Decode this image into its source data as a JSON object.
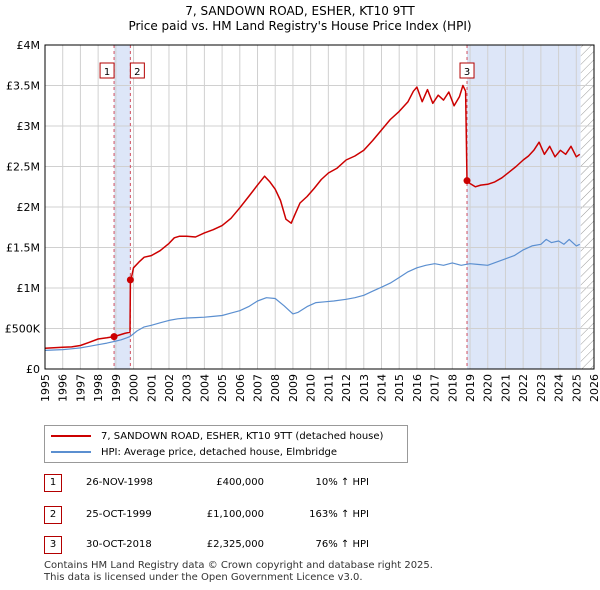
{
  "title_line1": "7, SANDOWN ROAD, ESHER, KT10 9TT",
  "title_line2": "Price paid vs. HM Land Registry's House Price Index (HPI)",
  "colors": {
    "price": "#cc0000",
    "hpi": "#5b8fd0",
    "shade": "#dde6f8",
    "grid": "#d0d0d0",
    "marker_line": "#d05060",
    "badge_border": "#b30000"
  },
  "chart_data": {
    "type": "line",
    "title": "Price paid vs. HM Land Registry's House Price Index (HPI)",
    "xlim": [
      1995,
      2026
    ],
    "ylim": [
      0,
      4000000
    ],
    "y_ticks": [
      {
        "v": 0,
        "label": "£0"
      },
      {
        "v": 500000,
        "label": "£500K"
      },
      {
        "v": 1000000,
        "label": "£1M"
      },
      {
        "v": 1500000,
        "label": "£1.5M"
      },
      {
        "v": 2000000,
        "label": "£2M"
      },
      {
        "v": 2500000,
        "label": "£2.5M"
      },
      {
        "v": 3000000,
        "label": "£3M"
      },
      {
        "v": 3500000,
        "label": "£3.5M"
      },
      {
        "v": 4000000,
        "label": "£4M"
      }
    ],
    "x_ticks": [
      "1995",
      "1996",
      "1997",
      "1998",
      "1999",
      "2000",
      "2001",
      "2002",
      "2003",
      "2004",
      "2005",
      "2006",
      "2007",
      "2008",
      "2009",
      "2010",
      "2011",
      "2012",
      "2013",
      "2014",
      "2015",
      "2016",
      "2017",
      "2018",
      "2019",
      "2020",
      "2021",
      "2022",
      "2023",
      "2024",
      "2025",
      "2026"
    ],
    "shaded_ranges": [
      [
        1998.9,
        1999.82
      ],
      [
        2018.83,
        2025.25
      ]
    ],
    "hatched_range": [
      2025.25,
      2026
    ],
    "series": [
      {
        "name": "7, SANDOWN ROAD, ESHER, KT10 9TT (detached house)",
        "x": [
          1995.0,
          1995.5,
          1996.0,
          1996.5,
          1997.0,
          1997.5,
          1998.0,
          1998.5,
          1998.9,
          1999.2,
          1999.5,
          1999.8,
          1999.82,
          1999.9,
          2000.0,
          2000.3,
          2000.6,
          2001.0,
          2001.5,
          2002.0,
          2002.3,
          2002.6,
          2003.0,
          2003.5,
          2004.0,
          2004.5,
          2005.0,
          2005.5,
          2006.0,
          2006.5,
          2007.0,
          2007.4,
          2007.7,
          2008.0,
          2008.3,
          2008.6,
          2008.9,
          2009.1,
          2009.4,
          2009.8,
          2010.2,
          2010.6,
          2011.0,
          2011.5,
          2012.0,
          2012.5,
          2013.0,
          2013.5,
          2014.0,
          2014.5,
          2015.0,
          2015.5,
          2015.8,
          2016.0,
          2016.3,
          2016.6,
          2016.9,
          2017.2,
          2017.5,
          2017.8,
          2018.1,
          2018.4,
          2018.6,
          2018.75,
          2018.83,
          2019.0,
          2019.3,
          2019.6,
          2020.0,
          2020.4,
          2020.8,
          2021.2,
          2021.6,
          2022.0,
          2022.3,
          2022.6,
          2022.9,
          2023.2,
          2023.5,
          2023.8,
          2024.1,
          2024.4,
          2024.7,
          2025.0,
          2025.2
        ],
        "y": [
          255000,
          262000,
          268000,
          273000,
          290000,
          330000,
          370000,
          385000,
          400000,
          420000,
          440000,
          455000,
          1100000,
          1150000,
          1250000,
          1320000,
          1380000,
          1400000,
          1460000,
          1550000,
          1620000,
          1640000,
          1640000,
          1630000,
          1680000,
          1720000,
          1770000,
          1860000,
          1990000,
          2130000,
          2270000,
          2380000,
          2310000,
          2220000,
          2080000,
          1850000,
          1800000,
          1900000,
          2050000,
          2130000,
          2230000,
          2340000,
          2420000,
          2480000,
          2580000,
          2630000,
          2700000,
          2820000,
          2950000,
          3080000,
          3180000,
          3300000,
          3430000,
          3480000,
          3300000,
          3450000,
          3280000,
          3380000,
          3320000,
          3420000,
          3250000,
          3360000,
          3500000,
          3430000,
          2325000,
          2290000,
          2250000,
          2270000,
          2280000,
          2310000,
          2360000,
          2430000,
          2500000,
          2580000,
          2630000,
          2700000,
          2800000,
          2650000,
          2750000,
          2620000,
          2700000,
          2650000,
          2750000,
          2620000,
          2650000
        ]
      },
      {
        "name": "HPI: Average price, detached house, Elmbridge",
        "x": [
          1995.0,
          1995.5,
          1996.0,
          1996.5,
          1997.0,
          1997.5,
          1998.0,
          1998.5,
          1998.9,
          1999.3,
          1999.8,
          2000.2,
          2000.6,
          2001.0,
          2001.5,
          2002.0,
          2002.5,
          2003.0,
          2003.5,
          2004.0,
          2004.5,
          2005.0,
          2005.5,
          2006.0,
          2006.5,
          2007.0,
          2007.5,
          2008.0,
          2008.5,
          2009.0,
          2009.3,
          2009.8,
          2010.3,
          2010.8,
          2011.3,
          2012.0,
          2012.5,
          2013.0,
          2013.5,
          2014.0,
          2014.5,
          2015.0,
          2015.5,
          2016.0,
          2016.5,
          2017.0,
          2017.5,
          2018.0,
          2018.5,
          2019.0,
          2019.5,
          2020.0,
          2020.5,
          2021.0,
          2021.5,
          2022.0,
          2022.5,
          2023.0,
          2023.3,
          2023.6,
          2024.0,
          2024.3,
          2024.6,
          2025.0,
          2025.2
        ],
        "y": [
          230000,
          235000,
          240000,
          250000,
          260000,
          280000,
          300000,
          320000,
          340000,
          360000,
          400000,
          470000,
          520000,
          540000,
          570000,
          600000,
          620000,
          630000,
          635000,
          640000,
          650000,
          660000,
          690000,
          720000,
          770000,
          840000,
          880000,
          870000,
          780000,
          680000,
          700000,
          770000,
          820000,
          830000,
          840000,
          860000,
          880000,
          910000,
          960000,
          1010000,
          1060000,
          1130000,
          1200000,
          1250000,
          1280000,
          1300000,
          1280000,
          1310000,
          1280000,
          1300000,
          1290000,
          1280000,
          1320000,
          1360000,
          1400000,
          1470000,
          1520000,
          1540000,
          1600000,
          1560000,
          1580000,
          1540000,
          1600000,
          1520000,
          1540000
        ]
      }
    ],
    "transactions": [
      {
        "label": "1",
        "date": "26-NOV-1998",
        "x": 1998.9,
        "price": 400000,
        "price_text": "£400,000",
        "hpi_text": "10% ↑ HPI"
      },
      {
        "label": "2",
        "date": "25-OCT-1999",
        "x": 1999.82,
        "price": 1100000,
        "price_text": "£1,100,000",
        "hpi_text": "163% ↑ HPI"
      },
      {
        "label": "3",
        "date": "30-OCT-2018",
        "x": 2018.83,
        "price": 2325000,
        "price_text": "£2,325,000",
        "hpi_text": "76% ↑ HPI"
      }
    ]
  },
  "legend": {
    "price_label": "7, SANDOWN ROAD, ESHER, KT10 9TT (detached house)",
    "hpi_label": "HPI: Average price, detached house, Elmbridge"
  },
  "footer_line1": "Contains HM Land Registry data © Crown copyright and database right 2025.",
  "footer_line2": "This data is licensed under the Open Government Licence v3.0."
}
